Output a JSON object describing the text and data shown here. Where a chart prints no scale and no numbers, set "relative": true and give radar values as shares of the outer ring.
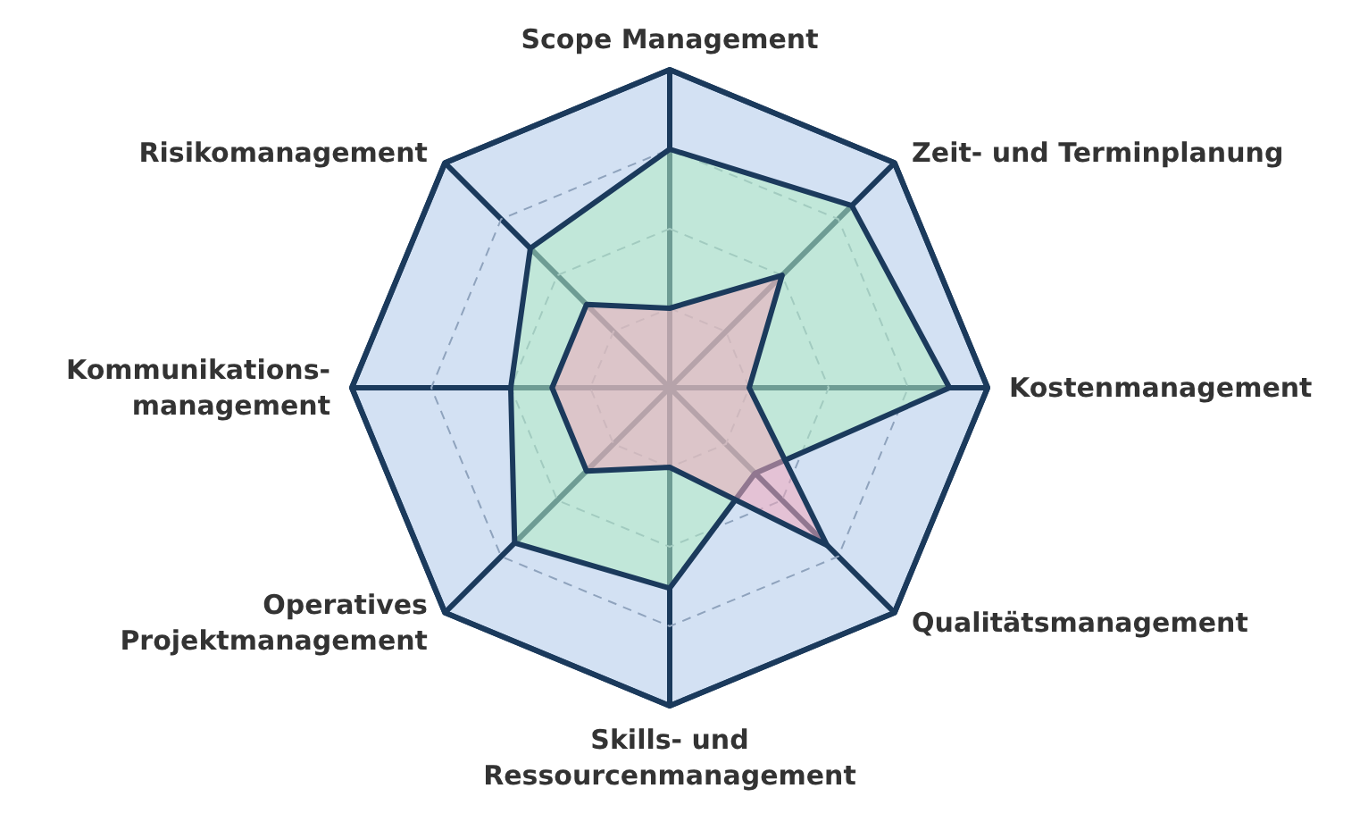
{
  "chart_data": {
    "type": "radar",
    "relative": true,
    "grid": true,
    "categories": [
      "Scope Management",
      "Zeit- und Terminplanung",
      "Kostenmanagement",
      "Qualitätsmanagement",
      "Skills- und\nRessourcenmanagement",
      "Operatives\nProjektmanagement",
      "Kommunikations-\nmanagement",
      "Risikomanagement"
    ],
    "series": [
      {
        "color": "#b3ecc3",
        "values": [
          0.75,
          0.81,
          0.88,
          0.38,
          0.63,
          0.69,
          0.5,
          0.62
        ]
      },
      {
        "color": "#f2a9bb",
        "values": [
          0.25,
          0.5,
          0.25,
          0.7,
          0.25,
          0.37,
          0.37,
          0.37
        ]
      }
    ]
  }
}
